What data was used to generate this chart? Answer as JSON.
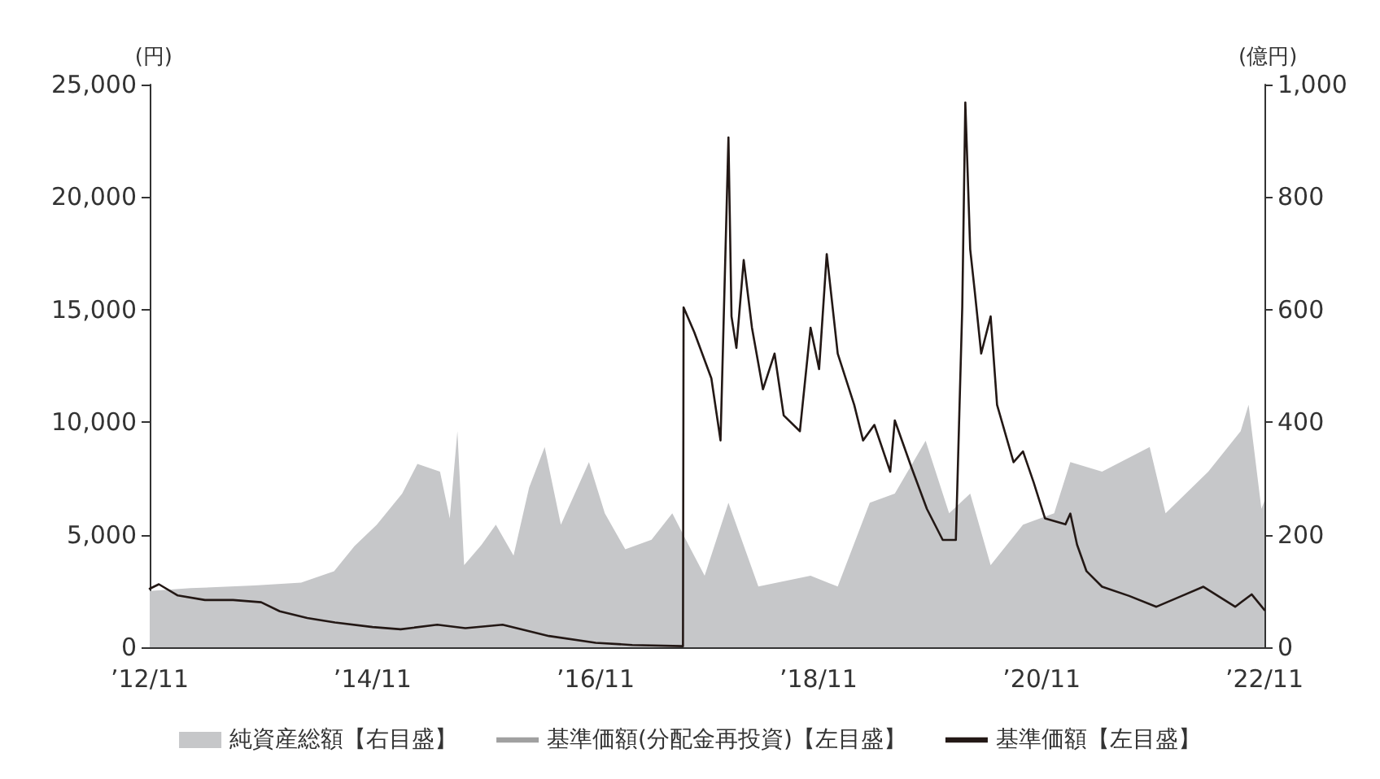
{
  "chart_data": {
    "type": "line",
    "ylabel": "(円)",
    "y2label": "(億円)",
    "xlim": [
      "2012-11-01",
      "2022-11-01"
    ],
    "xticks": [
      {
        "value": "2012-11-01",
        "label": "’12/11"
      },
      {
        "value": "2014-11-01",
        "label": "’14/11"
      },
      {
        "value": "2016-11-01",
        "label": "’16/11"
      },
      {
        "value": "2018-11-01",
        "label": "’18/11"
      },
      {
        "value": "2020-11-01",
        "label": "’20/11"
      },
      {
        "value": "2022-11-01",
        "label": "’22/11"
      }
    ],
    "ylim": [
      0,
      25000
    ],
    "yticks": [
      {
        "value": 0,
        "label": "0"
      },
      {
        "value": 5000,
        "label": "5,000"
      },
      {
        "value": 10000,
        "label": "10,000"
      },
      {
        "value": 15000,
        "label": "15,000"
      },
      {
        "value": 20000,
        "label": "20,000"
      },
      {
        "value": 25000,
        "label": "25,000"
      }
    ],
    "y2lim": [
      0,
      1000
    ],
    "y2ticks": [
      {
        "value": 0,
        "label": "0"
      },
      {
        "value": 200,
        "label": "200"
      },
      {
        "value": 400,
        "label": "400"
      },
      {
        "value": 600,
        "label": "600"
      },
      {
        "value": 800,
        "label": "800"
      },
      {
        "value": 1000,
        "label": "1,000"
      }
    ],
    "grid": false,
    "legend": "bottom",
    "marker": "none",
    "series": [
      {
        "name": "純資産総額【右目盛】",
        "type": "area",
        "axis": "y2",
        "color": "#c6c7c9",
        "x": [
          "2012-11-01",
          "2013-03-15",
          "2013-10-10",
          "2014-03-12",
          "2014-06-28",
          "2014-09-03",
          "2014-11-15",
          "2015-02-06",
          "2015-03-28",
          "2015-06-10",
          "2015-07-12",
          "2015-08-06",
          "2015-08-28",
          "2015-10-24",
          "2015-12-10",
          "2016-02-06",
          "2016-03-28",
          "2016-05-18",
          "2016-07-10",
          "2016-10-10",
          "2016-12-01",
          "2017-02-06",
          "2017-05-03",
          "2017-07-10",
          "2017-09-01",
          "2017-10-24",
          "2018-01-10",
          "2018-04-18",
          "2018-10-06",
          "2019-01-03",
          "2019-04-18",
          "2019-07-09",
          "2019-10-18",
          "2020-01-03",
          "2020-03-12",
          "2020-05-18",
          "2020-09-01",
          "2020-12-12",
          "2021-02-03",
          "2021-05-18",
          "2021-10-21",
          "2021-12-12",
          "2022-05-01",
          "2022-08-15",
          "2022-09-10",
          "2022-10-22",
          "2022-11-01"
        ],
        "values": [
          100,
          105,
          110,
          115,
          135,
          180,
          218,
          273,
          326,
          312,
          229,
          384,
          146,
          182,
          218,
          163,
          284,
          356,
          218,
          329,
          238,
          174,
          191,
          238,
          182,
          127,
          257,
          108,
          127,
          108,
          257,
          273,
          367,
          238,
          273,
          146,
          218,
          238,
          329,
          312,
          356,
          238,
          312,
          384,
          431,
          246,
          260
        ]
      },
      {
        "name": "基準価額(分配金再投資)【左目盛】",
        "color": "#a0a0a0"
      },
      {
        "name": "基準価額【左目盛】",
        "color": "#231815",
        "x": [
          "2012-11-01",
          "2012-12-01",
          "2013-02-01",
          "2013-05-01",
          "2013-08-01",
          "2013-11-01",
          "2014-01-01",
          "2014-04-01",
          "2014-07-01",
          "2014-11-01",
          "2015-02-01",
          "2015-06-01",
          "2015-09-01",
          "2016-01-01",
          "2016-03-01",
          "2016-06-01",
          "2016-11-01",
          "2017-03-01",
          "2017-08-14",
          "2017-08-16",
          "2017-09-20",
          "2017-11-15",
          "2017-12-15",
          "2018-01-10",
          "2018-01-20",
          "2018-02-05",
          "2018-03-01",
          "2018-03-28",
          "2018-05-03",
          "2018-06-10",
          "2018-07-10",
          "2018-09-01",
          "2018-10-06",
          "2018-11-03",
          "2018-11-28",
          "2019-01-03",
          "2019-02-26",
          "2019-03-27",
          "2019-05-03",
          "2019-06-24",
          "2019-07-09",
          "2019-09-01",
          "2019-10-22",
          "2019-12-13",
          "2020-01-25",
          "2020-02-15",
          "2020-02-25",
          "2020-03-12",
          "2020-03-27",
          "2020-04-17",
          "2020-05-18",
          "2020-06-08",
          "2020-08-01",
          "2020-09-01",
          "2020-10-06",
          "2020-11-12",
          "2021-01-18",
          "2021-02-03",
          "2021-02-25",
          "2021-03-28",
          "2021-05-18",
          "2021-08-15",
          "2021-11-12",
          "2022-02-03",
          "2022-04-15",
          "2022-07-28",
          "2022-09-20",
          "2022-11-01"
        ],
        "values": [
          2600,
          2800,
          2300,
          2100,
          2100,
          2000,
          1600,
          1300,
          1100,
          900,
          800,
          1000,
          850,
          1000,
          800,
          500,
          200,
          100,
          50,
          15100,
          14000,
          11950,
          9190,
          22650,
          14700,
          13300,
          17200,
          14200,
          11460,
          13050,
          10300,
          9600,
          14200,
          12360,
          17470,
          13050,
          10770,
          9190,
          9880,
          7800,
          10080,
          8010,
          6150,
          4770,
          4770,
          15120,
          24200,
          17680,
          15800,
          13050,
          14700,
          10770,
          8220,
          8700,
          7320,
          5730,
          5460,
          5940,
          4560,
          3380,
          2690,
          2280,
          1800,
          2280,
          2690,
          1800,
          2350,
          1660
        ]
      }
    ]
  }
}
